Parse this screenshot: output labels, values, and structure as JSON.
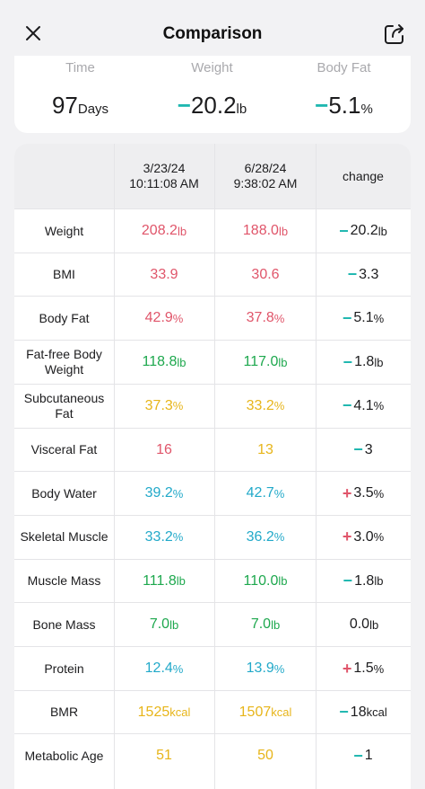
{
  "header": {
    "title": "Comparison"
  },
  "summary": [
    {
      "label": "Time",
      "value": "97",
      "unit": "Days",
      "prefix": ""
    },
    {
      "label": "Weight",
      "value": "20.2",
      "unit": "lb",
      "prefix": "−"
    },
    {
      "label": "Body Fat",
      "value": "5.1",
      "unit": "%",
      "prefix": "−"
    }
  ],
  "table": {
    "columns": [
      {
        "date": "3/23/24",
        "time": "10:11:08 AM"
      },
      {
        "date": "6/28/24",
        "time": "9:38:02 AM"
      }
    ],
    "change_label": "change",
    "rows": [
      {
        "name": "Weight",
        "v1": "208.2",
        "v2": "188.0",
        "unit": "lb",
        "c1": "#e0556a",
        "c2": "#e0556a",
        "sign": "−",
        "signColor": "#1fb7b0",
        "change": "20.2",
        "cunit": "lb"
      },
      {
        "name": "BMI",
        "v1": "33.9",
        "v2": "30.6",
        "unit": "",
        "c1": "#e0556a",
        "c2": "#e0556a",
        "sign": "−",
        "signColor": "#1fb7b0",
        "change": "3.3",
        "cunit": ""
      },
      {
        "name": "Body Fat",
        "v1": "42.9",
        "v2": "37.8",
        "unit": "%",
        "c1": "#e0556a",
        "c2": "#e0556a",
        "sign": "−",
        "signColor": "#1fb7b0",
        "change": "5.1",
        "cunit": "%"
      },
      {
        "name": "Fat-free Body Weight",
        "v1": "118.8",
        "v2": "117.0",
        "unit": "lb",
        "c1": "#1ea84e",
        "c2": "#1ea84e",
        "sign": "−",
        "signColor": "#1fb7b0",
        "change": "1.8",
        "cunit": "lb"
      },
      {
        "name": "Subcutaneous Fat",
        "v1": "37.3",
        "v2": "33.2",
        "unit": "%",
        "c1": "#e7b51a",
        "c2": "#e7b51a",
        "sign": "−",
        "signColor": "#1fb7b0",
        "change": "4.1",
        "cunit": "%"
      },
      {
        "name": "Visceral Fat",
        "v1": "16",
        "v2": "13",
        "unit": "",
        "c1": "#e0556a",
        "c2": "#e7b51a",
        "sign": "−",
        "signColor": "#1fb7b0",
        "change": "3",
        "cunit": ""
      },
      {
        "name": "Body Water",
        "v1": "39.2",
        "v2": "42.7",
        "unit": "%",
        "c1": "#22a9c9",
        "c2": "#22a9c9",
        "sign": "+",
        "signColor": "#e0556a",
        "change": "3.5",
        "cunit": "%"
      },
      {
        "name": "Skeletal Muscle",
        "v1": "33.2",
        "v2": "36.2",
        "unit": "%",
        "c1": "#22a9c9",
        "c2": "#22a9c9",
        "sign": "+",
        "signColor": "#e0556a",
        "change": "3.0",
        "cunit": "%"
      },
      {
        "name": "Muscle Mass",
        "v1": "111.8",
        "v2": "110.0",
        "unit": "lb",
        "c1": "#1ea84e",
        "c2": "#1ea84e",
        "sign": "−",
        "signColor": "#1fb7b0",
        "change": "1.8",
        "cunit": "lb"
      },
      {
        "name": "Bone Mass",
        "v1": "7.0",
        "v2": "7.0",
        "unit": "lb",
        "c1": "#1ea84e",
        "c2": "#1ea84e",
        "sign": "",
        "signColor": "#1c1c1e",
        "change": "0.0",
        "cunit": "lb"
      },
      {
        "name": "Protein",
        "v1": "12.4",
        "v2": "13.9",
        "unit": "%",
        "c1": "#22a9c9",
        "c2": "#22a9c9",
        "sign": "+",
        "signColor": "#e0556a",
        "change": "1.5",
        "cunit": "%"
      },
      {
        "name": "BMR",
        "v1": "1525",
        "v2": "1507",
        "unit": "kcal",
        "c1": "#e7b51a",
        "c2": "#e7b51a",
        "sign": "−",
        "signColor": "#1fb7b0",
        "change": "18",
        "cunit": "kcal"
      },
      {
        "name": "Metabolic Age",
        "v1": "51",
        "v2": "50",
        "unit": "",
        "c1": "#e7b51a",
        "c2": "#e7b51a",
        "sign": "−",
        "signColor": "#1fb7b0",
        "change": "1",
        "cunit": ""
      }
    ]
  },
  "icons": {
    "close": "close-icon",
    "share": "share-icon"
  },
  "colors": {
    "accent_teal": "#1fb7b0",
    "red": "#e0556a",
    "green": "#1ea84e",
    "yellow": "#e7b51a",
    "blue": "#22a9c9"
  }
}
